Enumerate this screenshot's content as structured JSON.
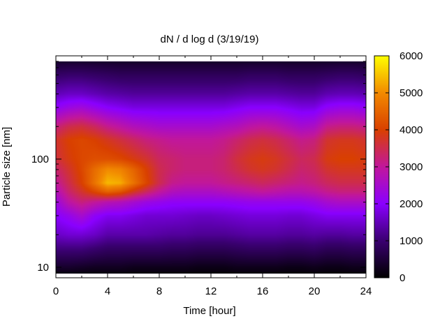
{
  "chart_data": {
    "type": "heatmap",
    "title": "dN / d log d (3/19/19)",
    "xlabel": "Time [hour]",
    "ylabel": "Particle size [nm]",
    "x_ticks": [
      0,
      4,
      8,
      12,
      16,
      20,
      24
    ],
    "xlim": [
      0,
      24
    ],
    "y_scale": "log",
    "y_ticks": [
      10,
      100
    ],
    "ylim": [
      8,
      900
    ],
    "colorbar": {
      "ticks": [
        0,
        1000,
        2000,
        3000,
        4000,
        5000,
        6000
      ],
      "range": [
        0,
        6000
      ],
      "colors": [
        "#000000",
        "#3a0070",
        "#8a00ff",
        "#c1179b",
        "#d94000",
        "#f28a00",
        "#ffff00"
      ]
    },
    "x": [
      0,
      1,
      2,
      3,
      4,
      5,
      6,
      7,
      8,
      9,
      10,
      11,
      12,
      13,
      14,
      15,
      16,
      17,
      18,
      19,
      20,
      21,
      22,
      23,
      24
    ],
    "y": [
      8,
      10,
      15,
      20,
      30,
      40,
      50,
      60,
      80,
      100,
      150,
      200,
      300,
      400,
      600,
      900
    ],
    "z": [
      [
        0,
        0,
        0,
        0,
        0,
        0,
        0,
        0,
        0,
        0,
        0,
        0,
        0,
        0,
        0,
        0,
        0,
        0,
        0,
        0,
        0,
        0,
        0,
        0,
        0
      ],
      [
        400,
        400,
        350,
        300,
        300,
        300,
        250,
        250,
        250,
        250,
        250,
        200,
        200,
        200,
        250,
        250,
        250,
        250,
        200,
        200,
        250,
        200,
        200,
        250,
        250
      ],
      [
        1100,
        1100,
        1100,
        1000,
        900,
        900,
        900,
        900,
        900,
        850,
        850,
        800,
        800,
        800,
        850,
        900,
        900,
        900,
        850,
        850,
        900,
        800,
        800,
        850,
        850
      ],
      [
        1600,
        1700,
        1700,
        1600,
        1400,
        1400,
        1400,
        1400,
        1350,
        1300,
        1300,
        1250,
        1250,
        1250,
        1300,
        1350,
        1350,
        1350,
        1300,
        1300,
        1350,
        1300,
        1300,
        1350,
        1350
      ],
      [
        2000,
        2200,
        2500,
        2100,
        1900,
        1900,
        1800,
        1700,
        1700,
        1700,
        1650,
        1600,
        1600,
        1650,
        1700,
        1750,
        1750,
        1750,
        1700,
        1700,
        1800,
        1900,
        1900,
        1900,
        1900
      ],
      [
        2300,
        2900,
        3200,
        3000,
        2800,
        2700,
        2500,
        2300,
        2200,
        2100,
        2100,
        2100,
        2100,
        2100,
        2150,
        2200,
        2200,
        2200,
        2200,
        2200,
        2300,
        2500,
        2600,
        2600,
        2600
      ],
      [
        2700,
        3300,
        3700,
        4100,
        4500,
        4300,
        3800,
        3400,
        3000,
        2700,
        2600,
        2600,
        2600,
        2700,
        2800,
        2900,
        3000,
        2900,
        2800,
        2800,
        2900,
        3100,
        3200,
        3200,
        3200
      ],
      [
        3000,
        3500,
        4000,
        4700,
        5400,
        5300,
        4700,
        4100,
        3500,
        3100,
        3000,
        3000,
        3000,
        3100,
        3200,
        3300,
        3400,
        3300,
        3200,
        3100,
        3200,
        3400,
        3500,
        3500,
        3500
      ],
      [
        3300,
        3700,
        4100,
        4600,
        5000,
        4900,
        4500,
        4000,
        3500,
        3300,
        3200,
        3200,
        3200,
        3300,
        3500,
        3700,
        3800,
        3700,
        3500,
        3300,
        3400,
        3700,
        3800,
        3800,
        3800
      ],
      [
        3600,
        3900,
        4100,
        4200,
        4200,
        4100,
        3900,
        3700,
        3400,
        3300,
        3200,
        3200,
        3200,
        3300,
        3600,
        3800,
        3900,
        3800,
        3600,
        3400,
        3500,
        3900,
        4000,
        4000,
        3900
      ],
      [
        3700,
        4000,
        4100,
        4000,
        3800,
        3600,
        3400,
        3200,
        3100,
        3000,
        3000,
        3000,
        3000,
        3100,
        3300,
        3500,
        3600,
        3500,
        3300,
        3100,
        3200,
        3700,
        3800,
        3800,
        3700
      ],
      [
        3200,
        3500,
        3600,
        3400,
        3100,
        2900,
        2700,
        2600,
        2500,
        2500,
        2500,
        2500,
        2500,
        2600,
        2700,
        2900,
        3000,
        2900,
        2700,
        2500,
        2600,
        3100,
        3200,
        3200,
        3100
      ],
      [
        2100,
        2300,
        2400,
        2200,
        2000,
        1900,
        1800,
        1800,
        1800,
        1800,
        1800,
        1800,
        1800,
        1800,
        1900,
        2000,
        2000,
        2000,
        1900,
        1800,
        1800,
        2100,
        2200,
        2200,
        2100
      ],
      [
        1500,
        1600,
        1600,
        1500,
        1400,
        1350,
        1300,
        1300,
        1300,
        1300,
        1300,
        1300,
        1300,
        1300,
        1350,
        1400,
        1400,
        1400,
        1350,
        1300,
        1300,
        1450,
        1500,
        1500,
        1450
      ],
      [
        900,
        950,
        950,
        900,
        850,
        800,
        800,
        800,
        800,
        800,
        800,
        800,
        800,
        800,
        800,
        850,
        850,
        850,
        800,
        800,
        800,
        850,
        900,
        900,
        850
      ],
      [
        200,
        200,
        200,
        200,
        200,
        200,
        200,
        200,
        200,
        200,
        200,
        200,
        200,
        200,
        200,
        200,
        200,
        200,
        200,
        200,
        200,
        200,
        200,
        200,
        200
      ]
    ]
  }
}
